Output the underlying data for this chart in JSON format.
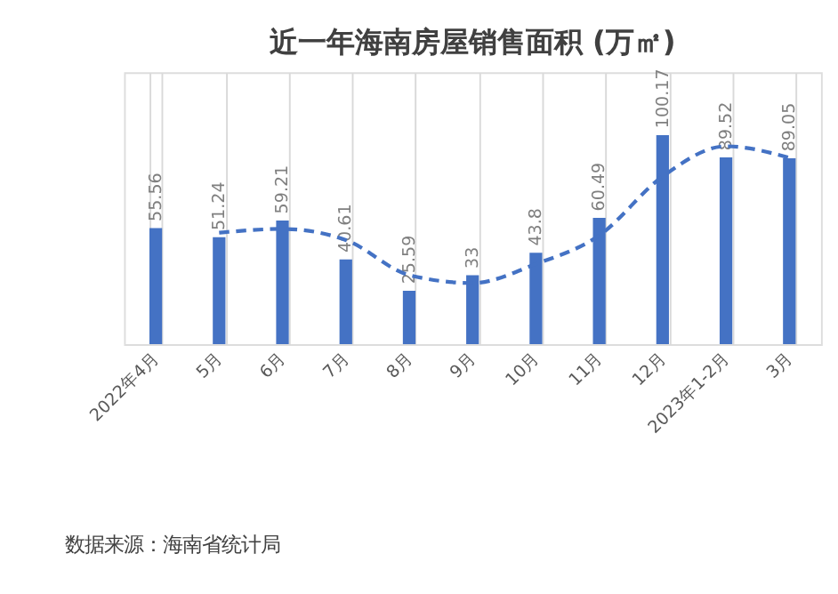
{
  "chart_data": {
    "type": "bar",
    "title": "近一年海南房屋销售面积 (万㎡)",
    "categories": [
      "2022年4月",
      "5月",
      "6月",
      "7月",
      "8月",
      "9月",
      "10月",
      "11月",
      "12月",
      "2023年1-2月",
      "3月"
    ],
    "series": [
      {
        "color": "#4472c4",
        "values": [
          55.56,
          51.24,
          59.21,
          40.61,
          25.59,
          33,
          43.8,
          60.49,
          100.17,
          89.52,
          89.05
        ],
        "value_labels": [
          "55.56",
          "51.24",
          "59.21",
          "40.61",
          "25.59",
          "33",
          "43.8",
          "60.49",
          "100.17",
          "89.52",
          "89.05"
        ]
      },
      {
        "type": "line",
        "color": "#4472c4",
        "line_style": "dashed",
        "values": [
          null,
          53.4,
          55.2,
          49.9,
          33.1,
          29.3,
          38.4,
          52.1,
          80.3,
          94.8,
          89.3
        ]
      }
    ],
    "grid": "x",
    "tick_labels": "x",
    "annotations": [
      "数据来源：海南省统计局"
    ]
  }
}
